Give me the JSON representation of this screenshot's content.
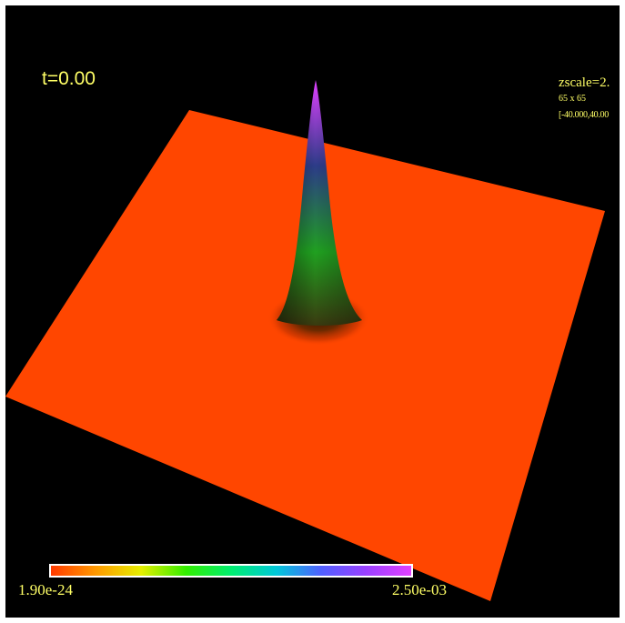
{
  "overlay": {
    "time_label": "t=0.00",
    "zscale_label": "zscale=2.",
    "grid_label": "65 x 65",
    "range_label": "[-40.000,40.00"
  },
  "colorbar": {
    "min_label": "1.90e-24",
    "max_label": "2.50e-03",
    "gradient_colors": [
      "#ff3a00",
      "#ff9900",
      "#e6ee00",
      "#33ee00",
      "#00ee70",
      "#00c8d8",
      "#5060ff",
      "#9a40ff",
      "#e040ff"
    ]
  },
  "colors": {
    "background": "#000000",
    "surface": "#ff4600",
    "overlay_text": "#ffff66",
    "peak_base": "#3a3a10",
    "peak_mid": "#20a020",
    "peak_upper": "#2c3c88",
    "peak_tip": "#e040ff"
  }
}
